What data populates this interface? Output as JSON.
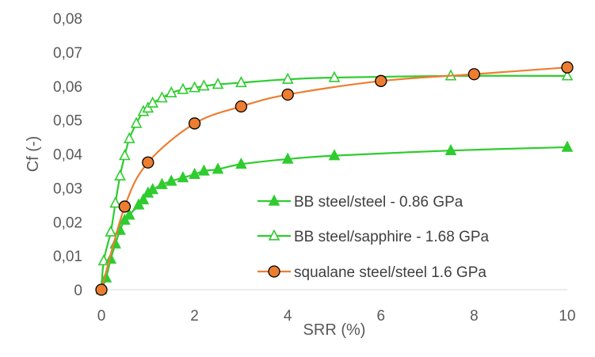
{
  "chart_data": {
    "type": "scatter",
    "title": "",
    "xlabel": "SRR (%)",
    "ylabel": "Cf (-)",
    "xlim": [
      0,
      10
    ],
    "ylim": [
      0,
      0.08
    ],
    "x_ticks": [
      0,
      2,
      4,
      6,
      8,
      10
    ],
    "x_tick_labels": [
      "0",
      "2",
      "4",
      "6",
      "8",
      "10"
    ],
    "y_ticks": [
      0,
      0.01,
      0.02,
      0.03,
      0.04,
      0.05,
      0.06,
      0.07,
      0.08
    ],
    "y_tick_labels": [
      "0",
      "0,01",
      "0,02",
      "0,03",
      "0,04",
      "0,05",
      "0,06",
      "0,07",
      "0,08"
    ],
    "grid": false,
    "legend_position": "lower-right",
    "series": [
      {
        "name": "BB steel/steel - 0.86 GPa",
        "marker": "triangle-filled",
        "color": "#2ecc2e",
        "marker_fill": "#2ecc2e",
        "line_color": "#2ecc2e",
        "x": [
          0,
          0.1,
          0.2,
          0.3,
          0.4,
          0.5,
          0.6,
          0.8,
          0.9,
          1.0,
          1.1,
          1.3,
          1.5,
          1.75,
          2.0,
          2.2,
          2.5,
          3.0,
          4.0,
          5.0,
          7.5,
          10.0
        ],
        "y": [
          0.0,
          0.0035,
          0.009,
          0.0135,
          0.0175,
          0.0205,
          0.022,
          0.025,
          0.0265,
          0.0285,
          0.0295,
          0.031,
          0.032,
          0.033,
          0.034,
          0.035,
          0.0355,
          0.037,
          0.0385,
          0.0395,
          0.041,
          0.042
        ]
      },
      {
        "name": "BB steel/sapphire - 1.68 GPa",
        "marker": "triangle-open",
        "color": "#2ecc2e",
        "marker_fill": "#ffffff",
        "line_color": "#2ecc2e",
        "x": [
          0,
          0.05,
          0.2,
          0.3,
          0.4,
          0.5,
          0.6,
          0.75,
          0.9,
          1.0,
          1.1,
          1.3,
          1.5,
          1.75,
          2.0,
          2.2,
          2.5,
          3.0,
          4.0,
          5.0,
          7.5,
          10.0
        ],
        "y": [
          0.0,
          0.0085,
          0.017,
          0.0255,
          0.0335,
          0.0395,
          0.0445,
          0.049,
          0.0525,
          0.0535,
          0.055,
          0.0565,
          0.058,
          0.059,
          0.0595,
          0.06,
          0.0605,
          0.061,
          0.062,
          0.0625,
          0.063,
          0.063
        ]
      },
      {
        "name": "squalane steel/steel 1.6 GPa",
        "marker": "circle",
        "color": "#ed7d31",
        "marker_fill": "#ed7d31",
        "line_color": "#ed7d31",
        "x": [
          0,
          0.5,
          1.0,
          2.0,
          3.0,
          4.0,
          6.0,
          8.0,
          10.0
        ],
        "y": [
          0.0,
          0.0245,
          0.0375,
          0.049,
          0.054,
          0.0575,
          0.0615,
          0.0635,
          0.0655
        ]
      }
    ]
  }
}
